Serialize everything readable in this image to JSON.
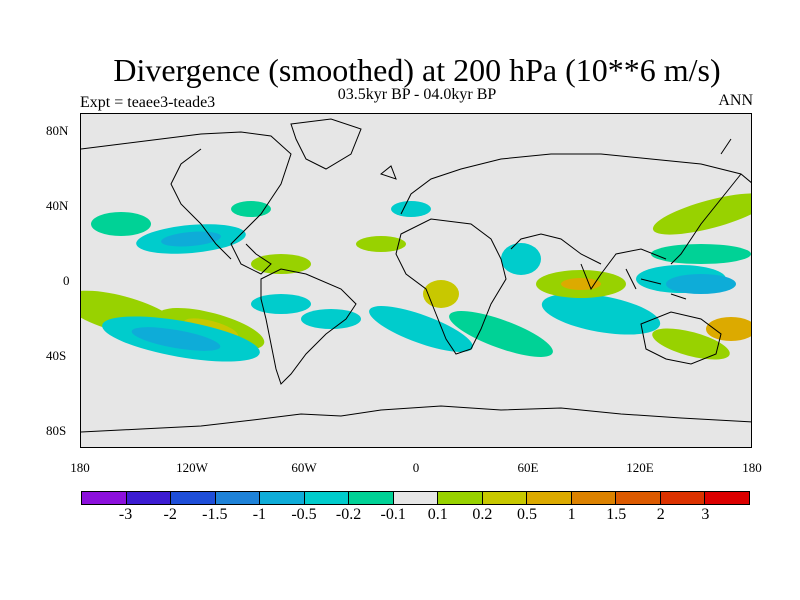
{
  "title": "Divergence (smoothed) at 200 hPa (10**6 m/s)",
  "subtitle": "03.5kyr BP - 04.0kyr BP",
  "expt_label": "Expt = teaee3-teade3",
  "period_label": "ANN",
  "map": {
    "background_color": "#e6e6e6",
    "lat_ticks": [
      "80N",
      "40N",
      "0",
      "40S",
      "80S"
    ],
    "lon_ticks": [
      "180",
      "120W",
      "60W",
      "0",
      "60E",
      "120E",
      "180"
    ]
  },
  "colorbar": {
    "colors": [
      "#8c10dc",
      "#3c1cd2",
      "#1e4ed8",
      "#1e82d8",
      "#0eacd8",
      "#00cccc",
      "#00d296",
      "#e6e6e6",
      "#98d200",
      "#c8c800",
      "#dcaa00",
      "#dc8200",
      "#dc5a00",
      "#dc3200",
      "#dc0000"
    ],
    "labels": [
      "-3",
      "-2",
      "-1.5",
      "-1",
      "-0.5",
      "-0.2",
      "-0.1",
      "0.1",
      "0.2",
      "0.5",
      "1",
      "1.5",
      "2",
      "3"
    ]
  }
}
